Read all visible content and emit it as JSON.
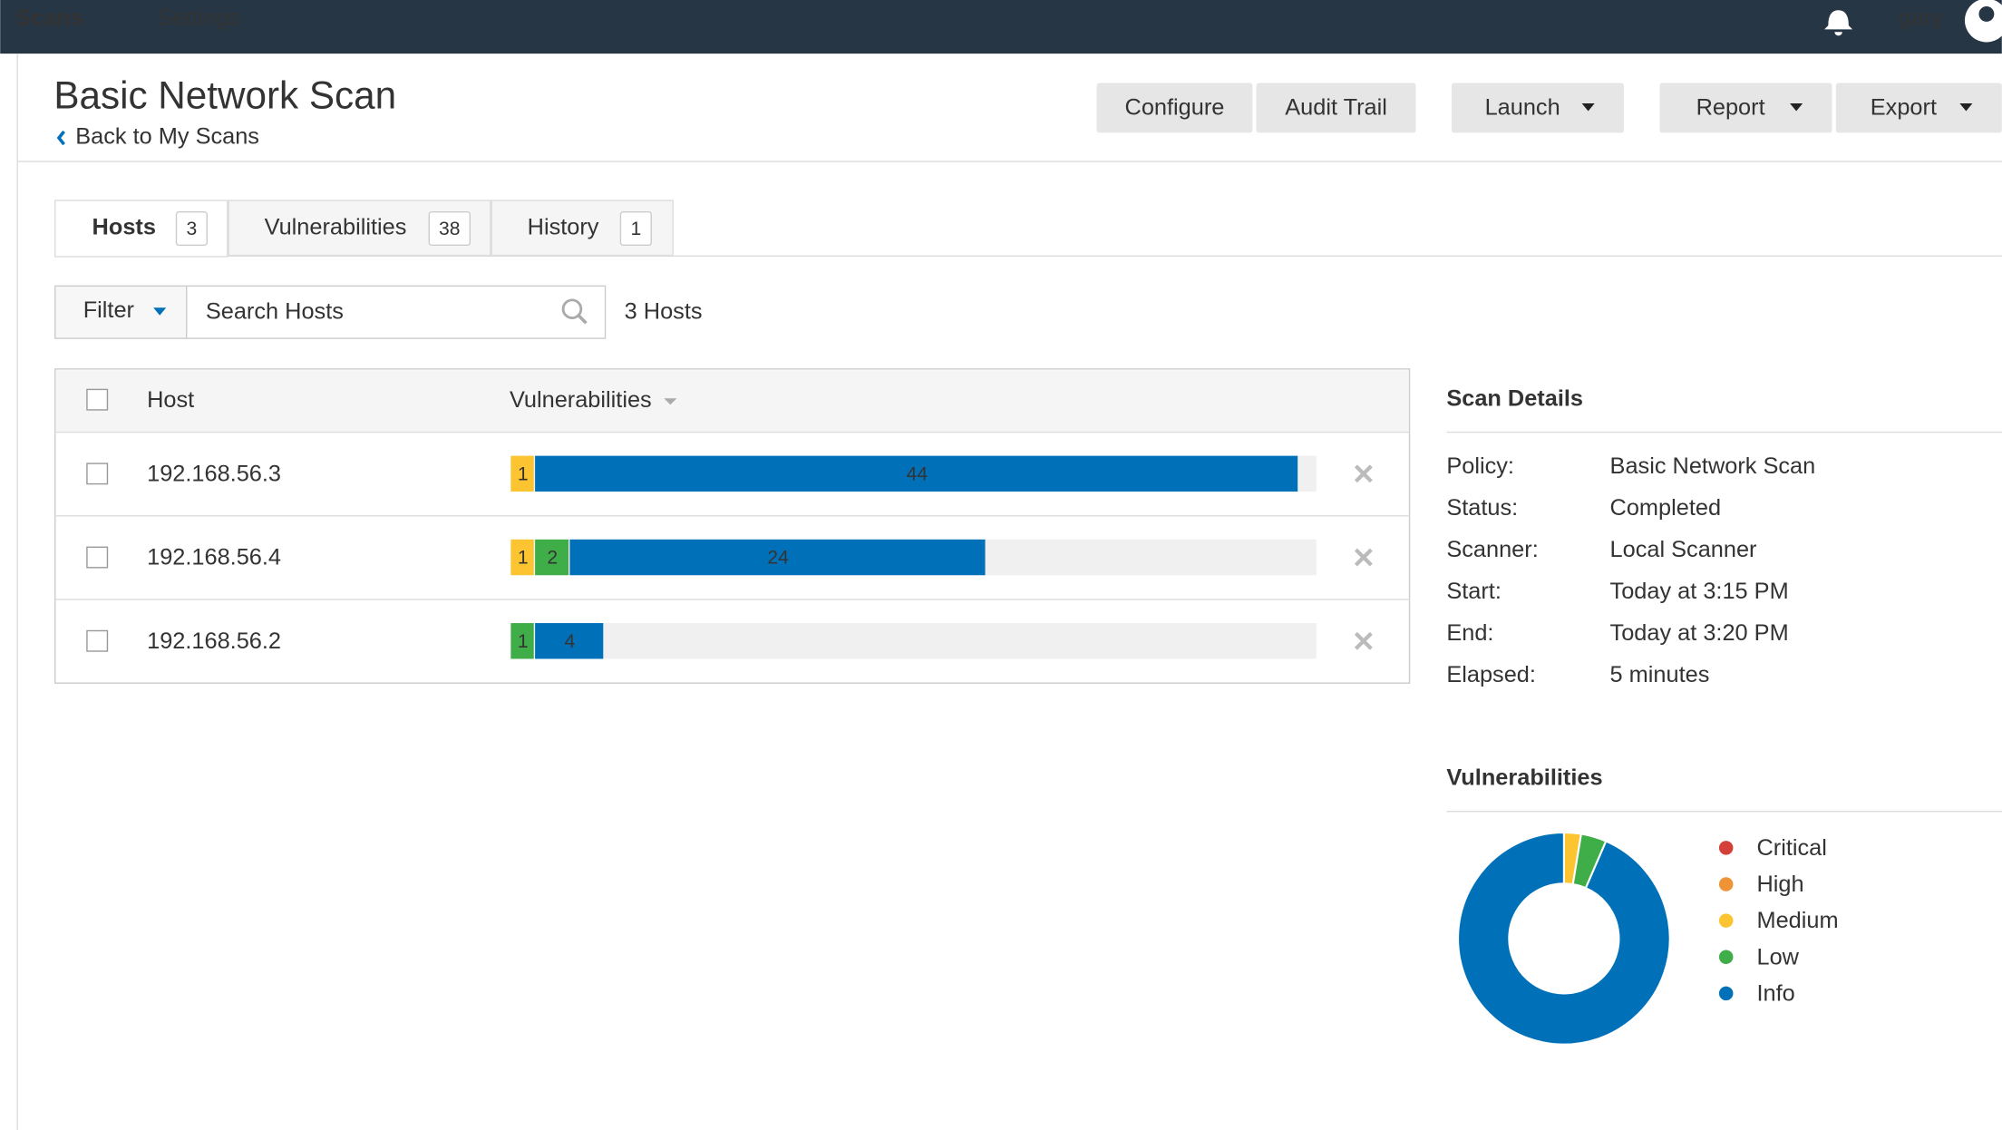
{
  "nav": {
    "items": [
      "Scans",
      "Settings"
    ],
    "user": "gary"
  },
  "header": {
    "title": "Basic Network Scan",
    "back_link": "Back to My Scans",
    "buttons": [
      "Configure",
      "Audit Trail",
      "Launch",
      "Report",
      "Export"
    ]
  },
  "tabs": [
    {
      "label": "Hosts",
      "count": 3
    },
    {
      "label": "Vulnerabilities",
      "count": 38
    },
    {
      "label": "History",
      "count": 1
    }
  ],
  "toolbar": {
    "filter": "Filter",
    "search_placeholder": "Search Hosts",
    "summary": "3 Hosts"
  },
  "table": {
    "columns": [
      "Host",
      "Vulnerabilities"
    ],
    "rows": [
      {
        "host": "192.168.56.3",
        "segments": [
          {
            "color": "#fdc431",
            "value": 1
          },
          {
            "color": "#0071b9",
            "value": 44
          }
        ]
      },
      {
        "host": "192.168.56.4",
        "segments": [
          {
            "color": "#fdc431",
            "value": 1
          },
          {
            "color": "#3fae49",
            "value": 2
          },
          {
            "color": "#0071b9",
            "value": 24
          }
        ]
      },
      {
        "host": "192.168.56.2",
        "segments": [
          {
            "color": "#3fae49",
            "value": 1
          },
          {
            "color": "#0071b9",
            "value": 4
          }
        ]
      }
    ]
  },
  "scan_details": {
    "title": "Scan Details",
    "rows": [
      [
        "Policy:",
        "Basic Network Scan"
      ],
      [
        "Status:",
        "Completed"
      ],
      [
        "Scanner:",
        "Local Scanner"
      ],
      [
        "Start:",
        "Today at 3:15 PM"
      ],
      [
        "End:",
        "Today at 3:20 PM"
      ],
      [
        "Elapsed:",
        "5 minutes"
      ]
    ]
  },
  "vulnerabilities_chart": {
    "title": "Vulnerabilities",
    "series": [
      {
        "name": "Critical",
        "color": "#d43f3a",
        "value": 0
      },
      {
        "name": "High",
        "color": "#ee9336",
        "value": 0
      },
      {
        "name": "Medium",
        "color": "#fdc431",
        "value": 2
      },
      {
        "name": "Low",
        "color": "#3fae49",
        "value": 3
      },
      {
        "name": "Info",
        "color": "#0071b9",
        "value": 72
      }
    ]
  }
}
